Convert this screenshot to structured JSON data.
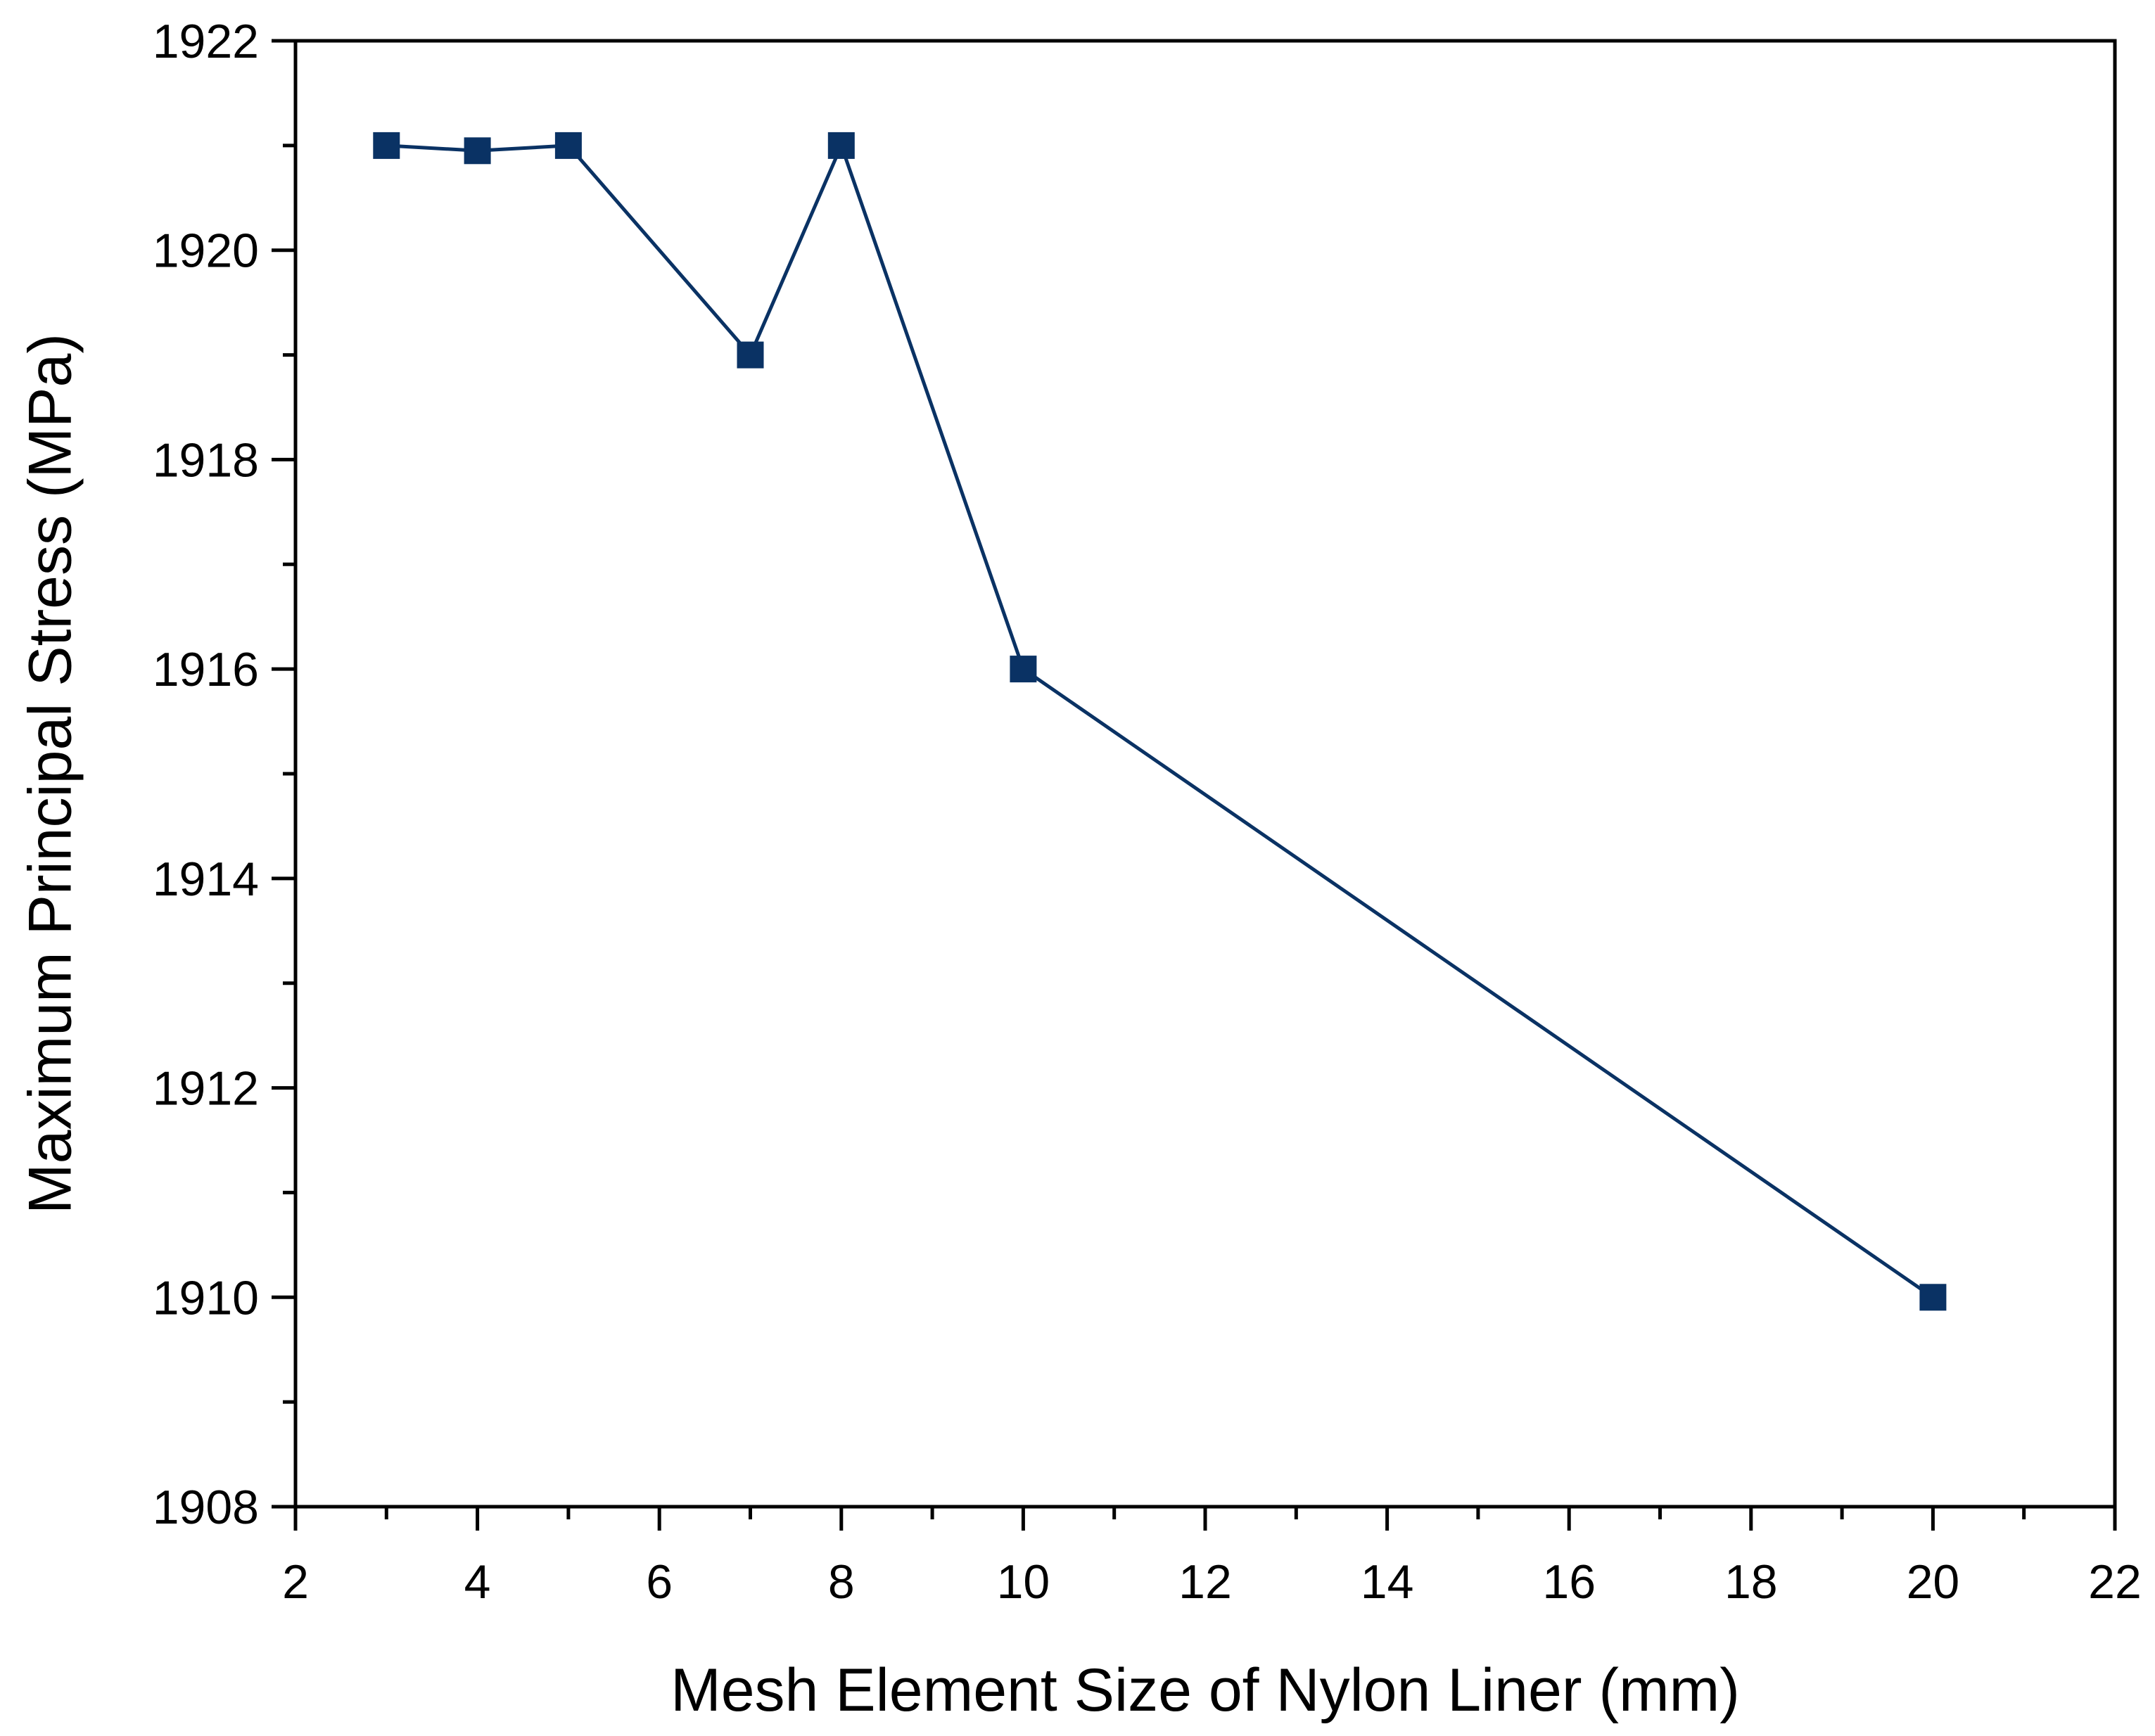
{
  "chart_data": {
    "type": "line",
    "title": "",
    "xlabel": "Mesh Element Size of Nylon Liner (mm)",
    "ylabel": "Maximum Principal Stress (MPa)",
    "xlim": [
      2,
      22
    ],
    "ylim": [
      1908,
      1922
    ],
    "xticks": [
      2,
      4,
      6,
      8,
      10,
      12,
      14,
      16,
      18,
      20,
      22
    ],
    "xtick_labels": [
      "2",
      "4",
      "6",
      "8",
      "10",
      "12",
      "14",
      "16",
      "18",
      "20",
      "22"
    ],
    "xminor_ticks": [
      3,
      5,
      7,
      9,
      11,
      13,
      15,
      17,
      19,
      21
    ],
    "yticks": [
      1908,
      1910,
      1912,
      1914,
      1916,
      1918,
      1920,
      1922
    ],
    "ytick_labels": [
      "1908",
      "1910",
      "1912",
      "1914",
      "1916",
      "1918",
      "1920",
      "1922"
    ],
    "yminor_ticks": [
      1909,
      1911,
      1913,
      1915,
      1917,
      1919,
      1921
    ],
    "grid": false,
    "legend": null,
    "series": [
      {
        "name": "Maximum Principal Stress",
        "marker": "square",
        "color": "#0a3264",
        "x": [
          3,
          4,
          5,
          7,
          8,
          10,
          20
        ],
        "y": [
          1921,
          1920.95,
          1921,
          1919,
          1921,
          1916,
          1910
        ]
      }
    ]
  }
}
